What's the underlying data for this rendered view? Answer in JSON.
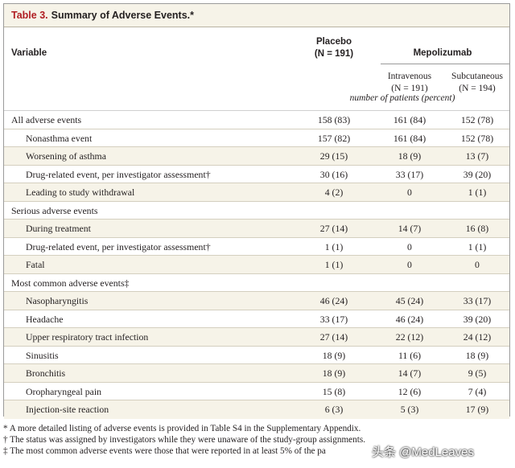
{
  "table": {
    "label": "Table 3.",
    "title": "Summary of Adverse Events.*",
    "headers": {
      "variable": "Variable",
      "placebo": "Placebo",
      "placebo_n": "(N = 191)",
      "mepolizumab": "Mepolizumab",
      "intravenous": "Intravenous",
      "intravenous_n": "(N = 191)",
      "subcutaneous": "Subcutaneous",
      "subcutaneous_n": "(N = 194)",
      "units": "number of patients (percent)"
    },
    "rows": [
      {
        "label": "All adverse events",
        "placebo": "158 (83)",
        "iv": "161 (84)",
        "sc": "152 (78)",
        "sub": false,
        "shade": false
      },
      {
        "label": "Nonasthma event",
        "placebo": "157 (82)",
        "iv": "161 (84)",
        "sc": "152 (78)",
        "sub": true,
        "shade": false
      },
      {
        "label": "Worsening of asthma",
        "placebo": "29 (15)",
        "iv": "18 (9)",
        "sc": "13 (7)",
        "sub": true,
        "shade": true
      },
      {
        "label": "Drug-related event, per investigator assessment†",
        "placebo": "30 (16)",
        "iv": "33 (17)",
        "sc": "39 (20)",
        "sub": true,
        "shade": false
      },
      {
        "label": "Leading to study withdrawal",
        "placebo": "4 (2)",
        "iv": "0",
        "sc": "1 (1)",
        "sub": true,
        "shade": true
      },
      {
        "label": "Serious adverse events",
        "placebo": "",
        "iv": "",
        "sc": "",
        "sub": false,
        "shade": false
      },
      {
        "label": "During treatment",
        "placebo": "27 (14)",
        "iv": "14 (7)",
        "sc": "16 (8)",
        "sub": true,
        "shade": true
      },
      {
        "label": "Drug-related event, per investigator assessment†",
        "placebo": "1 (1)",
        "iv": "0",
        "sc": "1 (1)",
        "sub": true,
        "shade": false
      },
      {
        "label": "Fatal",
        "placebo": "1 (1)",
        "iv": "0",
        "sc": "0",
        "sub": true,
        "shade": true
      },
      {
        "label": "Most common adverse events‡",
        "placebo": "",
        "iv": "",
        "sc": "",
        "sub": false,
        "shade": false
      },
      {
        "label": "Nasopharyngitis",
        "placebo": "46 (24)",
        "iv": "45 (24)",
        "sc": "33 (17)",
        "sub": true,
        "shade": true
      },
      {
        "label": "Headache",
        "placebo": "33 (17)",
        "iv": "46 (24)",
        "sc": "39 (20)",
        "sub": true,
        "shade": false
      },
      {
        "label": "Upper respiratory tract infection",
        "placebo": "27 (14)",
        "iv": "22 (12)",
        "sc": "24 (12)",
        "sub": true,
        "shade": true
      },
      {
        "label": "Sinusitis",
        "placebo": "18 (9)",
        "iv": "11 (6)",
        "sc": "18 (9)",
        "sub": true,
        "shade": false
      },
      {
        "label": "Bronchitis",
        "placebo": "18 (9)",
        "iv": "14 (7)",
        "sc": "9 (5)",
        "sub": true,
        "shade": true
      },
      {
        "label": "Oropharyngeal pain",
        "placebo": "15 (8)",
        "iv": "12 (6)",
        "sc": "7 (4)",
        "sub": true,
        "shade": false
      },
      {
        "label": "Injection-site reaction",
        "placebo": "6 (3)",
        "iv": "5 (3)",
        "sc": "17 (9)",
        "sub": true,
        "shade": true
      }
    ]
  },
  "footnotes": [
    "* A more detailed listing of adverse events is provided in Table S4 in the Supplementary Appendix.",
    "† The status was assigned by investigators while they were unaware of the study-group assignments.",
    "‡ The most common adverse events were those that were reported in at least 5% of the pa"
  ],
  "watermark": "头条 @MedLeaves"
}
